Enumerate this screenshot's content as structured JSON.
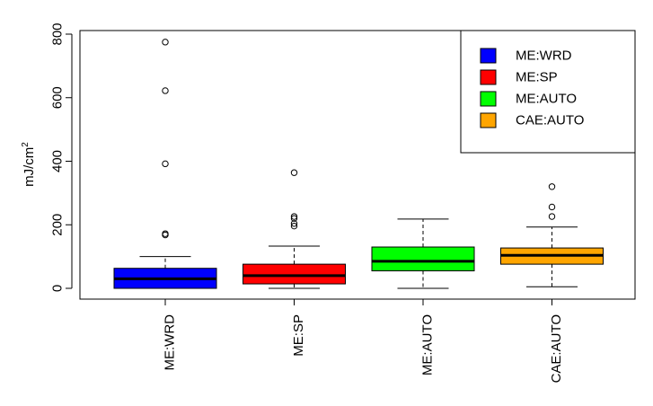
{
  "chart_data": {
    "type": "boxplot",
    "title": "",
    "xlabel": "",
    "ylabel": "mJ/cm",
    "ylabel_superscript": "2",
    "ylim": [
      -40,
      820
    ],
    "yticks": [
      0,
      200,
      400,
      600,
      800
    ],
    "categories": [
      "ME:WRD",
      "ME:SP",
      "ME:AUTO",
      "CAE:AUTO"
    ],
    "colors": [
      "#0000ff",
      "#ff0000",
      "#00ff00",
      "#ffa500"
    ],
    "series": [
      {
        "name": "ME:WRD",
        "whisker_low": 0,
        "q1": 0,
        "median": 30,
        "q3": 63,
        "whisker_high": 100,
        "outliers": [
          168,
          172,
          392,
          622,
          775
        ]
      },
      {
        "name": "ME:SP",
        "whisker_low": 0,
        "q1": 14,
        "median": 40,
        "q3": 76,
        "whisker_high": 133,
        "outliers": [
          196,
          204,
          220,
          226,
          364
        ]
      },
      {
        "name": "ME:AUTO",
        "whisker_low": 0,
        "q1": 55,
        "median": 85,
        "q3": 130,
        "whisker_high": 218,
        "outliers": []
      },
      {
        "name": "CAE:AUTO",
        "whisker_low": 5,
        "q1": 76,
        "median": 104,
        "q3": 127,
        "whisker_high": 193,
        "outliers": [
          226,
          256,
          320
        ]
      }
    ],
    "legend": {
      "position": "top-right",
      "entries": [
        "ME:WRD",
        "ME:SP",
        "ME:AUTO",
        "CAE:AUTO"
      ]
    }
  }
}
